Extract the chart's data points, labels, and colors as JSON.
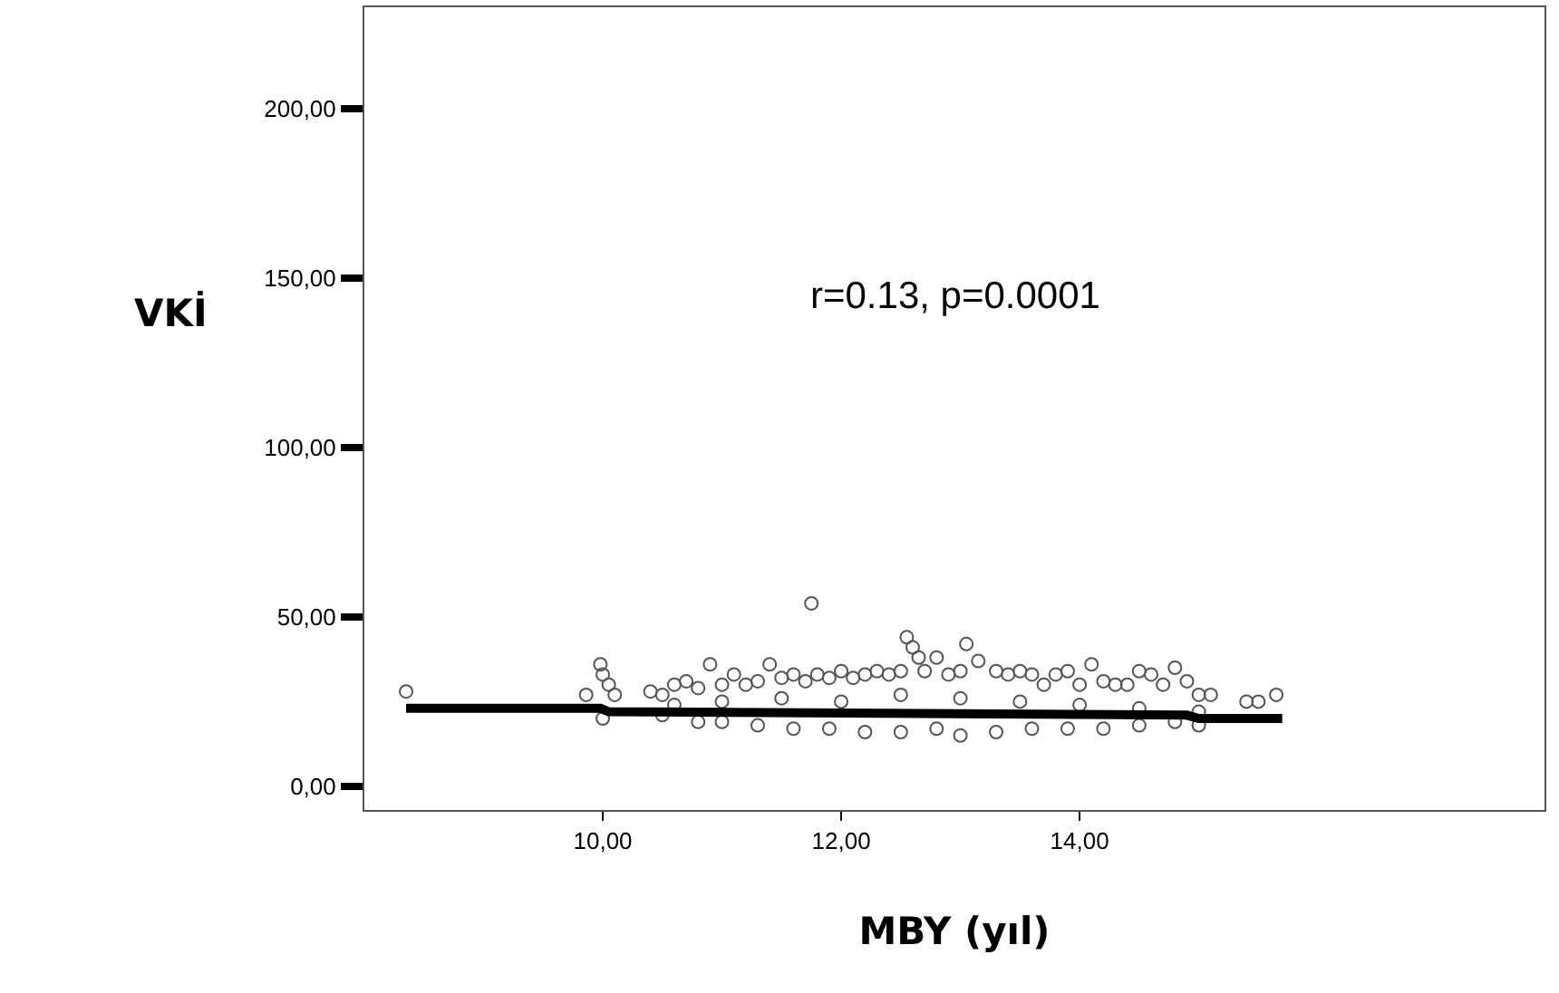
{
  "chart_data": {
    "type": "scatter",
    "xlabel": "MBY (yıl)",
    "ylabel": "VKİ",
    "annotations": [
      "r=0.13, p=0.0001"
    ],
    "xlim": [
      8.0,
      17.9
    ],
    "xticks": [
      {
        "value": 10,
        "label": "10,00"
      },
      {
        "value": 12,
        "label": "12,00"
      },
      {
        "value": 14,
        "label": "14,00"
      }
    ],
    "ylim": [
      -7,
      230
    ],
    "yticks": [
      {
        "value": 0,
        "label": "0,00"
      },
      {
        "value": 50,
        "label": "50,00"
      },
      {
        "value": 100,
        "label": "100,00"
      },
      {
        "value": 150,
        "label": "150,00"
      },
      {
        "value": 200,
        "label": "200,00"
      }
    ],
    "marker": "circle",
    "series": [
      {
        "color": "#555555",
        "x": [
          8.35,
          9.86,
          9.98,
          10.0,
          10.05,
          10.1,
          10.4,
          10.5,
          10.6,
          10.7,
          10.8,
          10.9,
          11.0,
          11.1,
          11.2,
          11.3,
          11.4,
          11.5,
          11.6,
          11.7,
          11.75,
          11.8,
          11.9,
          12.0,
          12.1,
          12.2,
          12.3,
          12.4,
          12.5,
          12.55,
          12.6,
          12.65,
          12.7,
          12.8,
          12.9,
          13.0,
          13.05,
          13.15,
          13.3,
          13.4,
          13.5,
          13.6,
          13.7,
          13.8,
          13.9,
          14.0,
          14.1,
          14.2,
          14.3,
          14.4,
          14.5,
          14.6,
          14.7,
          14.8,
          14.9,
          15.0,
          15.1,
          15.4,
          15.5,
          15.65,
          10.0,
          10.5,
          10.8,
          11.0,
          11.3,
          11.6,
          11.9,
          12.2,
          12.5,
          12.8,
          13.0,
          13.3,
          13.6,
          13.9,
          14.2,
          14.5,
          14.8,
          15.0,
          10.6,
          11.0,
          11.5,
          12.0,
          12.5,
          13.0,
          13.5,
          14.0,
          14.5,
          15.0
        ],
        "values": [
          28,
          27,
          36,
          33,
          30,
          27,
          28,
          27,
          30,
          31,
          29,
          36,
          30,
          33,
          30,
          31,
          36,
          32,
          33,
          31,
          54,
          33,
          32,
          34,
          32,
          33,
          34,
          33,
          34,
          44,
          41,
          38,
          34,
          38,
          33,
          34,
          42,
          37,
          34,
          33,
          34,
          33,
          30,
          33,
          34,
          30,
          36,
          31,
          30,
          30,
          34,
          33,
          30,
          35,
          31,
          27,
          27,
          25,
          25,
          27,
          20,
          21,
          19,
          19,
          18,
          17,
          17,
          16,
          16,
          17,
          15,
          16,
          17,
          17,
          17,
          18,
          19,
          18,
          24,
          25,
          26,
          25,
          27,
          26,
          25,
          24,
          23,
          22
        ]
      },
      {
        "type": "line",
        "marker": "none",
        "color": "#000000",
        "x": [
          8.35,
          9.98,
          10.05,
          14.9,
          15.0,
          15.7
        ],
        "values": [
          23,
          23,
          22,
          21,
          20,
          20
        ]
      }
    ]
  }
}
